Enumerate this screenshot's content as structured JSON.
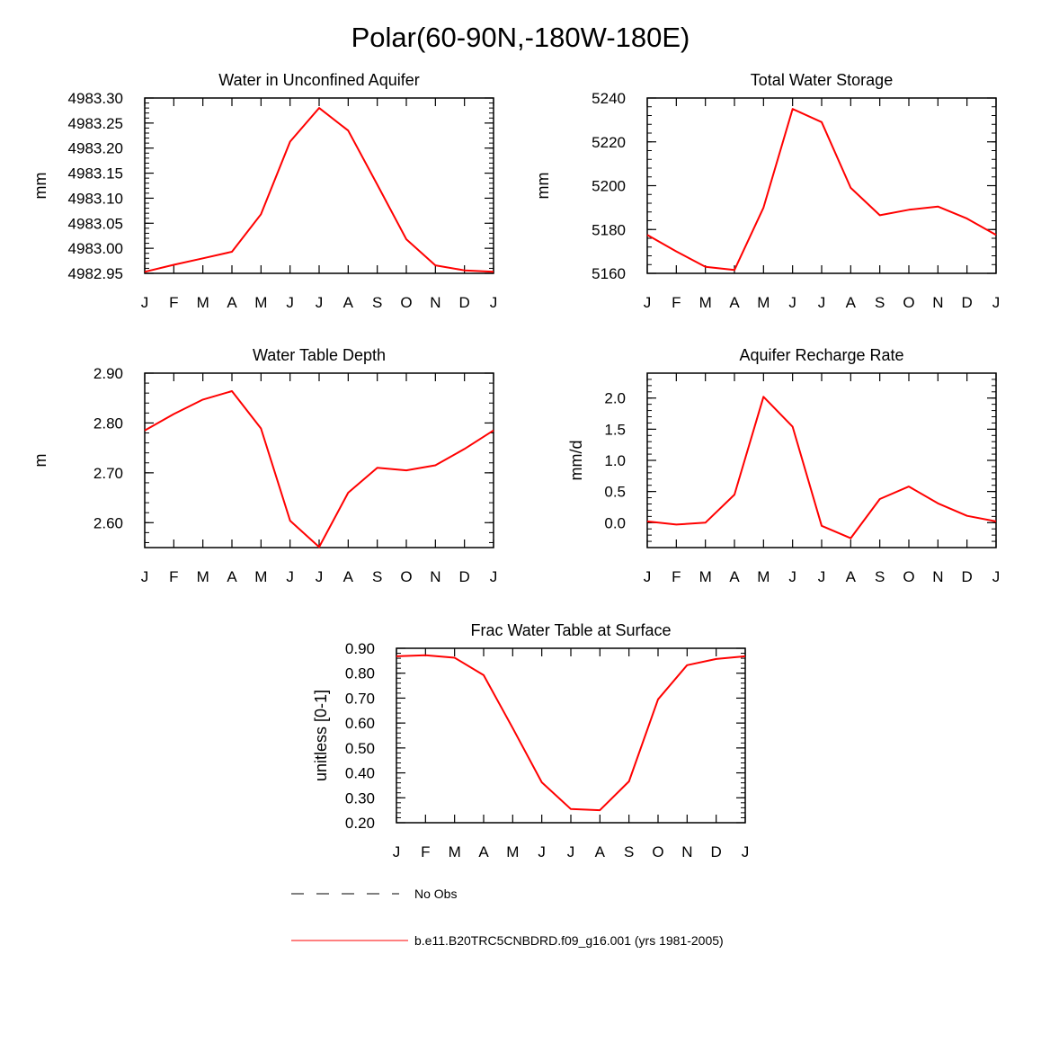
{
  "title": "Polar(60-90N,-180W-180E)",
  "months": [
    "J",
    "F",
    "M",
    "A",
    "M",
    "J",
    "J",
    "A",
    "S",
    "O",
    "N",
    "D",
    "J"
  ],
  "series_color": "#ff0000",
  "legend": {
    "obs_label": "No Obs",
    "model_label": "b.e11.B20TRC5CNBDRD.f09_g16.001 (yrs 1981-2005)"
  },
  "chart_data": [
    {
      "type": "line",
      "title": "Water in Unconfined Aquifer",
      "ylabel": "mm",
      "ylim": [
        4982.95,
        4983.3
      ],
      "yticks": [
        "4982.95",
        "4983.00",
        "4983.05",
        "4983.10",
        "4983.15",
        "4983.20",
        "4983.25",
        "4983.30"
      ],
      "yticks_values": [
        4982.95,
        4983.0,
        4983.05,
        4983.1,
        4983.15,
        4983.2,
        4983.25,
        4983.3
      ],
      "minor_step": 0.01,
      "values": [
        4982.953,
        4982.967,
        4982.98,
        4982.993,
        4983.068,
        4983.213,
        4983.28,
        4983.235,
        4983.127,
        4983.018,
        4982.966,
        4982.956,
        4982.953
      ]
    },
    {
      "type": "line",
      "title": "Total Water Storage",
      "ylabel": "mm",
      "ylim": [
        5160,
        5240
      ],
      "yticks": [
        "5160",
        "5180",
        "5200",
        "5220",
        "5240"
      ],
      "yticks_values": [
        5160,
        5180,
        5200,
        5220,
        5240
      ],
      "minor_step": 4,
      "values": [
        5177.5,
        5170,
        5163,
        5161.5,
        5190,
        5235,
        5229,
        5199,
        5186.5,
        5189,
        5190.5,
        5185,
        5177.5
      ]
    },
    {
      "type": "line",
      "title": "Water Table Depth",
      "ylabel": "m",
      "ylim": [
        2.55,
        2.9
      ],
      "yticks": [
        "2.60",
        "2.70",
        "2.80",
        "2.90"
      ],
      "yticks_values": [
        2.6,
        2.7,
        2.8,
        2.9
      ],
      "minor_step": 0.02,
      "values": [
        2.785,
        2.818,
        2.847,
        2.864,
        2.789,
        2.604,
        2.551,
        2.66,
        2.71,
        2.705,
        2.715,
        2.748,
        2.785
      ]
    },
    {
      "type": "line",
      "title": "Aquifer Recharge Rate",
      "ylabel": "mm/d",
      "ylim": [
        -0.4,
        2.4
      ],
      "yticks": [
        "0.0",
        "0.5",
        "1.0",
        "1.5",
        "2.0"
      ],
      "yticks_values": [
        0.0,
        0.5,
        1.0,
        1.5,
        2.0
      ],
      "minor_step": 0.1,
      "values": [
        0.02,
        -0.03,
        0.0,
        0.45,
        2.02,
        1.54,
        -0.05,
        -0.25,
        0.38,
        0.58,
        0.31,
        0.11,
        0.02
      ]
    },
    {
      "type": "line",
      "title": "Frac Water Table at Surface",
      "ylabel": "unitless [0-1]",
      "ylim": [
        0.2,
        0.9
      ],
      "yticks": [
        "0.20",
        "0.30",
        "0.40",
        "0.50",
        "0.60",
        "0.70",
        "0.80",
        "0.90"
      ],
      "yticks_values": [
        0.2,
        0.3,
        0.4,
        0.5,
        0.6,
        0.7,
        0.8,
        0.9
      ],
      "minor_step": 0.02,
      "values": [
        0.868,
        0.872,
        0.862,
        0.792,
        0.58,
        0.362,
        0.255,
        0.25,
        0.366,
        0.695,
        0.832,
        0.857,
        0.868
      ]
    }
  ]
}
